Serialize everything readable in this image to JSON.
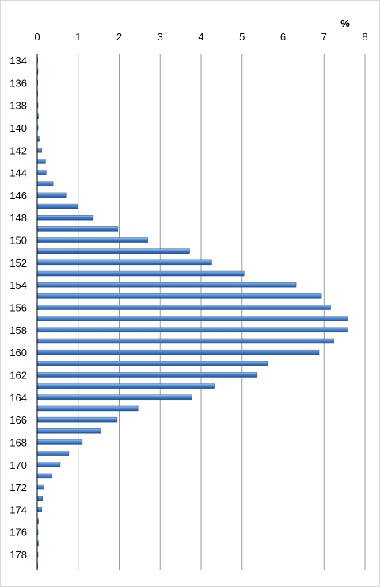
{
  "chart_data": {
    "type": "bar",
    "orientation": "horizontal",
    "title": "",
    "x_unit_label": "%",
    "xlim": [
      0,
      8
    ],
    "x_ticks": [
      0,
      1,
      2,
      3,
      4,
      5,
      6,
      7,
      8
    ],
    "x_axis_position": "top",
    "grid": "vertical",
    "legend": "none",
    "bar_color": "#4f81bd",
    "categories": [
      134,
      135,
      136,
      137,
      138,
      139,
      140,
      141,
      142,
      143,
      144,
      145,
      146,
      147,
      148,
      149,
      150,
      151,
      152,
      153,
      154,
      155,
      156,
      157,
      158,
      159,
      160,
      161,
      162,
      163,
      164,
      165,
      166,
      167,
      168,
      169,
      170,
      171,
      172,
      173,
      174,
      175,
      176,
      177,
      178,
      179
    ],
    "y_tick_labels": [
      134,
      136,
      138,
      140,
      142,
      144,
      146,
      148,
      150,
      152,
      154,
      156,
      158,
      160,
      162,
      164,
      166,
      168,
      170,
      172,
      174,
      176,
      178
    ],
    "values": [
      0,
      0.01,
      0,
      0,
      0.01,
      0.03,
      0.02,
      0.07,
      0.11,
      0.2,
      0.22,
      0.39,
      0.72,
      1.0,
      1.37,
      1.97,
      2.7,
      3.72,
      4.26,
      5.05,
      6.32,
      6.94,
      7.16,
      7.58,
      7.58,
      7.24,
      6.88,
      5.62,
      5.37,
      4.32,
      3.78,
      2.46,
      1.95,
      1.55,
      1.1,
      0.77,
      0.56,
      0.36,
      0.16,
      0.13,
      0.11,
      0.03,
      0.02,
      0.03,
      0.01,
      0
    ]
  }
}
